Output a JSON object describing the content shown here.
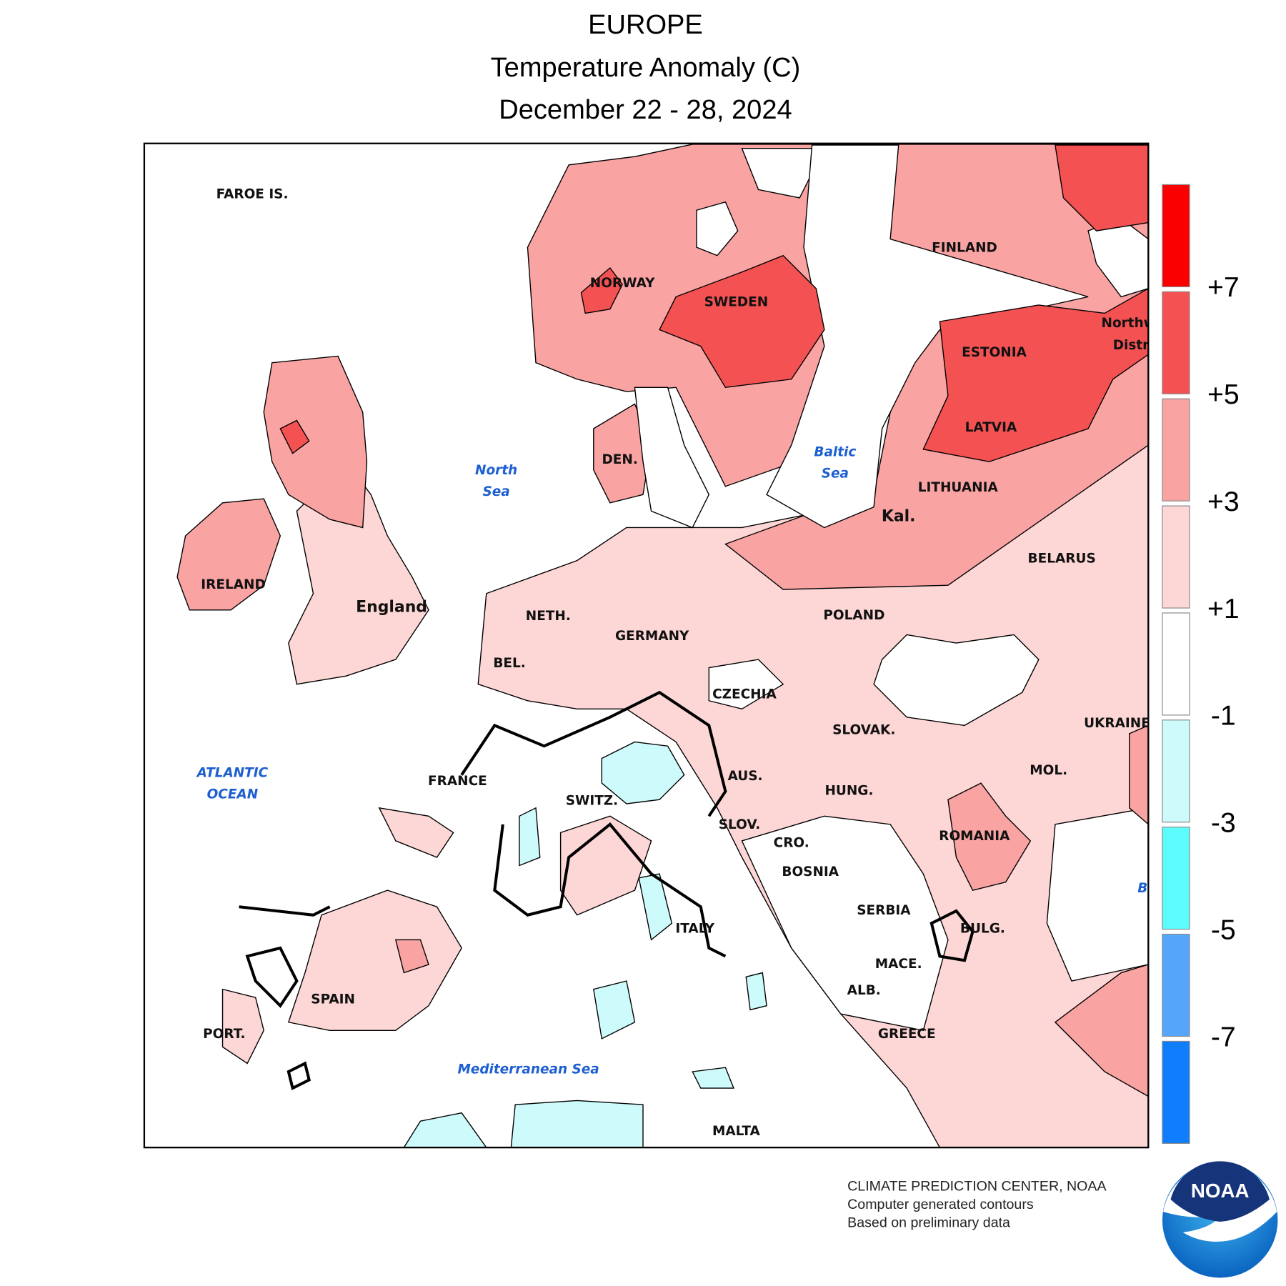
{
  "header": {
    "title": "EUROPE",
    "subtitle": "Temperature Anomaly (C)",
    "period": "December 22 - 28, 2024"
  },
  "map": {
    "labels": [
      "Northw",
      "Distri",
      "FAROE IS.",
      "NORWAY",
      "SWEDEN",
      "FINLAND",
      "ESTONIA",
      "LATVIA",
      "LITHUANIA",
      "Kal.",
      "BELARUS",
      "POLAND",
      "DEN.",
      "IRELAND",
      "England",
      "NETH.",
      "GERMANY",
      "BEL.",
      "CZECHIA",
      "SLOVAK.",
      "UKRAINE",
      "FRANCE",
      "AUS.",
      "SWITZ.",
      "MOL.",
      "HUNG.",
      "SLOV.",
      "CRO.",
      "ROMANIA",
      "BOSNIA",
      "SERBIA",
      "ITALY",
      "BULG.",
      "MACE.",
      "ALB.",
      "SPAIN",
      "PORT.",
      "GREECE",
      "MALTA"
    ],
    "seas": [
      [
        "North",
        "Sea"
      ],
      [
        "Baltic",
        "Sea"
      ],
      [
        "ATLANTIC",
        "OCEAN"
      ],
      "Mediterranean Sea",
      null,
      "B"
    ]
  },
  "legend": {
    "colors": [
      "#fa0000",
      "#f45252",
      "#f9a3a3",
      "#fdd6d6",
      "#ffffff",
      "#cdfafa",
      "#5cfcfc",
      "#55a6fb",
      "#0f7dfc"
    ],
    "ticks": [
      {
        "value": 7,
        "label": "+7"
      },
      {
        "value": 5,
        "label": "+5"
      },
      {
        "value": 3,
        "label": "+3"
      },
      {
        "value": 1,
        "label": "+1"
      },
      -1,
      -3,
      -5,
      -7
    ],
    "range": [
      9,
      -9
    ]
  },
  "credits": [
    "CLIMATE PREDICTION CENTER, NOAA",
    "Computer generated contours",
    "Based on preliminary data"
  ],
  "logo": "NOAA"
}
